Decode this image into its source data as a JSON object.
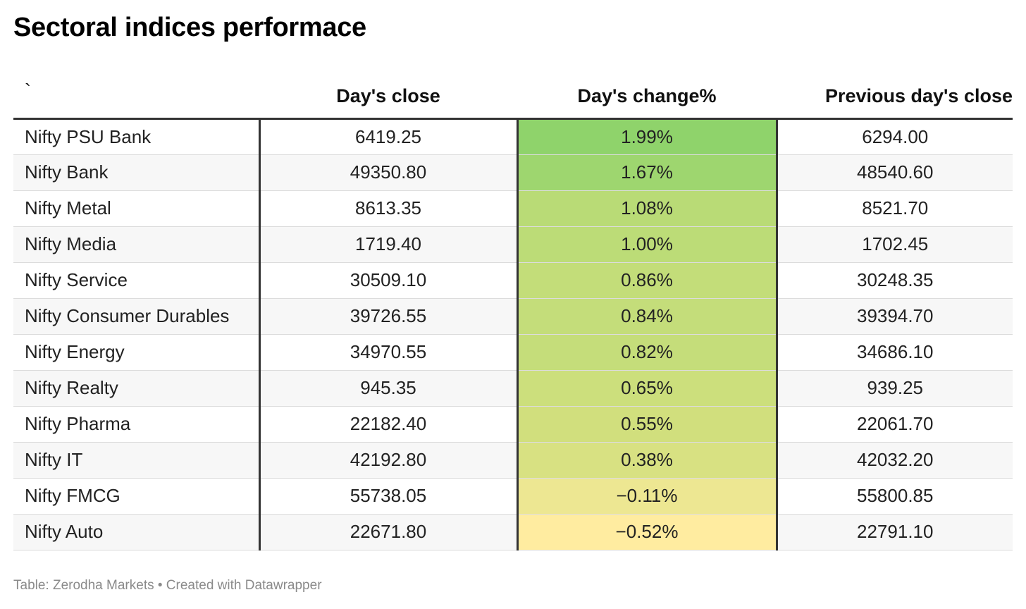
{
  "title": "Sectoral indices performace",
  "source": "Table: Zerodha Markets • Created with Datawrapper",
  "chart_data": {
    "type": "table",
    "title": "Sectoral indices performace",
    "columns": [
      "`",
      "Day's close",
      "Day's change%",
      "Previous day's close"
    ],
    "rows": [
      {
        "name": "Nifty PSU Bank",
        "close": "6419.25",
        "change": "1.99%",
        "change_value": 1.99,
        "prev": "6294.00"
      },
      {
        "name": "Nifty Bank",
        "close": "49350.80",
        "change": "1.67%",
        "change_value": 1.67,
        "prev": "48540.60"
      },
      {
        "name": "Nifty Metal",
        "close": "8613.35",
        "change": "1.08%",
        "change_value": 1.08,
        "prev": "8521.70"
      },
      {
        "name": "Nifty Media",
        "close": "1719.40",
        "change": "1.00%",
        "change_value": 1.0,
        "prev": "1702.45"
      },
      {
        "name": "Nifty Service",
        "close": "30509.10",
        "change": "0.86%",
        "change_value": 0.86,
        "prev": "30248.35"
      },
      {
        "name": "Nifty Consumer Durables",
        "close": "39726.55",
        "change": "0.84%",
        "change_value": 0.84,
        "prev": "39394.70"
      },
      {
        "name": "Nifty Energy",
        "close": "34970.55",
        "change": "0.82%",
        "change_value": 0.82,
        "prev": "34686.10"
      },
      {
        "name": "Nifty Realty",
        "close": "945.35",
        "change": "0.65%",
        "change_value": 0.65,
        "prev": "939.25"
      },
      {
        "name": "Nifty Pharma",
        "close": "22182.40",
        "change": "0.55%",
        "change_value": 0.55,
        "prev": "22061.70"
      },
      {
        "name": "Nifty IT",
        "close": "42192.80",
        "change": "0.38%",
        "change_value": 0.38,
        "prev": "42032.20"
      },
      {
        "name": "Nifty FMCG",
        "close": "55738.05",
        "change": "−0.11%",
        "change_value": -0.11,
        "prev": "55800.85"
      },
      {
        "name": "Nifty Auto",
        "close": "22671.80",
        "change": "−0.52%",
        "change_value": -0.52,
        "prev": "22791.10"
      }
    ],
    "heatmap_colors": {
      "low": "#ffeca0",
      "mid": "#d4e07e",
      "high": "#8fd36b"
    }
  }
}
